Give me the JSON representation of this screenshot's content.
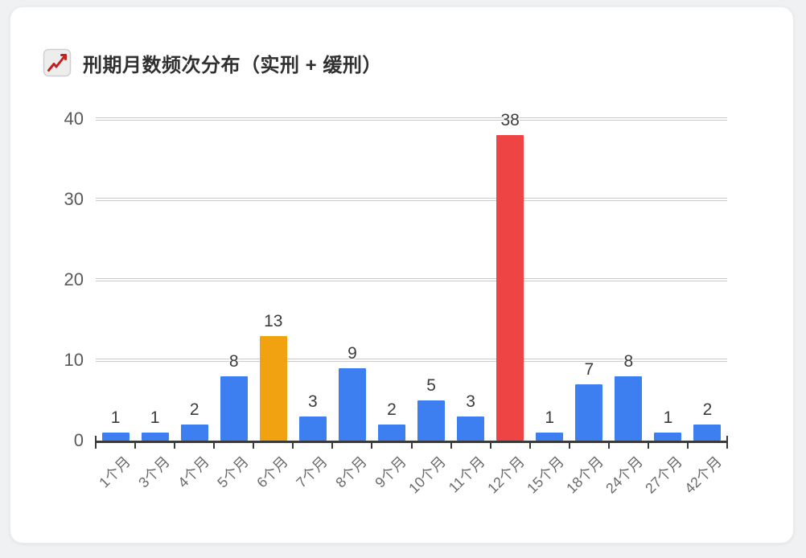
{
  "header": {
    "title": "刑期月数频次分布（实刑 + 缓刑）",
    "icon": "chart-increasing"
  },
  "chart_data": {
    "type": "bar",
    "title": "刑期月数频次分布（实刑 + 缓刑）",
    "categories": [
      "1个月",
      "3个月",
      "4个月",
      "5个月",
      "6个月",
      "7个月",
      "8个月",
      "9个月",
      "10个月",
      "11个月",
      "12个月",
      "15个月",
      "18个月",
      "24个月",
      "27个月",
      "42个月"
    ],
    "values": [
      1,
      1,
      2,
      8,
      13,
      3,
      9,
      2,
      5,
      3,
      38,
      1,
      7,
      8,
      1,
      2
    ],
    "xlabel": "",
    "ylabel": "",
    "ylim": [
      0,
      40
    ],
    "yticks": [
      0,
      10,
      20,
      30,
      40
    ],
    "grid": true,
    "legend": false,
    "value_labels_shown": true,
    "bar_default_color": "#3d7ff0",
    "highlight_colors": {
      "4": "#f0a211",
      "10": "#ee4444"
    }
  },
  "colors": {
    "page_bg": "#f0f1f3",
    "card_bg": "#ffffff",
    "grid": "#c9c9c9",
    "axis": "#3a3a3a",
    "y_tick_label": "#595959",
    "x_tick_label": "#6b6b6b",
    "value_label": "#3c3c3c",
    "title": "#303030",
    "icon_line_red": "#c0221f"
  }
}
